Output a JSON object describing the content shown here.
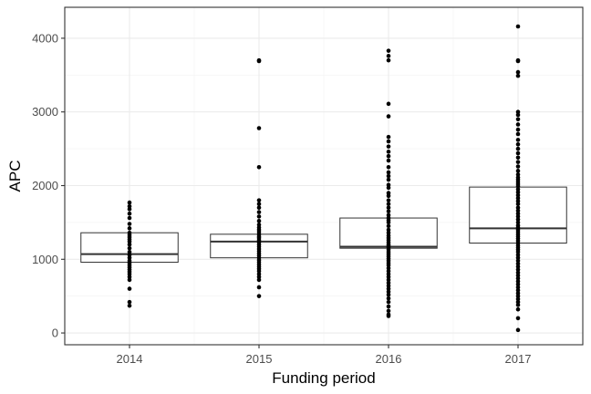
{
  "chart_data": {
    "type": "box",
    "title": "",
    "xlabel": "Funding period",
    "ylabel": "APC",
    "ylim": [
      -160,
      4420
    ],
    "yticks": [
      0,
      1000,
      2000,
      3000,
      4000
    ],
    "grid": true,
    "categories": [
      "2014",
      "2015",
      "2016",
      "2017"
    ],
    "boxes": [
      {
        "category": "2014",
        "q1": 960,
        "median": 1070,
        "q3": 1360
      },
      {
        "category": "2015",
        "q1": 1020,
        "median": 1240,
        "q3": 1340
      },
      {
        "category": "2016",
        "q1": 1150,
        "median": 1170,
        "q3": 1560
      },
      {
        "category": "2017",
        "q1": 1220,
        "median": 1420,
        "q3": 1980
      }
    ],
    "points": [
      {
        "category": "2014",
        "values": [
          1770,
          1720,
          1680,
          1620,
          1560,
          1480,
          1420,
          1360,
          1330,
          1300,
          1270,
          1240,
          1200,
          1150,
          1100,
          1060,
          1020,
          980,
          950,
          920,
          890,
          860,
          830,
          800,
          760,
          720,
          600,
          420,
          370
        ]
      },
      {
        "category": "2015",
        "values": [
          3700,
          3690,
          2780,
          2250,
          1800,
          1750,
          1700,
          1640,
          1580,
          1520,
          1470,
          1430,
          1400,
          1370,
          1340,
          1310,
          1290,
          1260,
          1230,
          1200,
          1170,
          1140,
          1110,
          1080,
          1050,
          1020,
          990,
          960,
          930,
          900,
          870,
          840,
          800,
          760,
          720,
          620,
          500
        ]
      },
      {
        "category": "2016",
        "values": [
          3830,
          3760,
          3700,
          3110,
          2940,
          2660,
          2600,
          2530,
          2460,
          2400,
          2340,
          2250,
          2180,
          2130,
          2080,
          2010,
          1970,
          1900,
          1860,
          1800,
          1750,
          1700,
          1650,
          1600,
          1560,
          1530,
          1500,
          1450,
          1400,
          1360,
          1320,
          1290,
          1260,
          1230,
          1200,
          1180,
          1160,
          1130,
          1100,
          1070,
          1040,
          1010,
          980,
          950,
          920,
          880,
          840,
          800,
          760,
          720,
          680,
          640,
          600,
          560,
          520,
          470,
          420,
          360,
          300,
          250,
          230
        ]
      },
      {
        "category": "2017",
        "values": [
          4160,
          3700,
          3690,
          3540,
          3490,
          3000,
          2960,
          2900,
          2830,
          2760,
          2700,
          2620,
          2560,
          2500,
          2440,
          2380,
          2320,
          2260,
          2200,
          2150,
          2110,
          2080,
          2050,
          2020,
          1990,
          1950,
          1910,
          1870,
          1830,
          1790,
          1750,
          1700,
          1660,
          1620,
          1580,
          1540,
          1500,
          1460,
          1430,
          1400,
          1370,
          1340,
          1310,
          1280,
          1250,
          1220,
          1190,
          1160,
          1130,
          1100,
          1060,
          1020,
          980,
          940,
          900,
          860,
          820,
          780,
          740,
          700,
          660,
          620,
          580,
          540,
          500,
          460,
          420,
          380,
          320,
          200,
          40
        ]
      }
    ]
  }
}
